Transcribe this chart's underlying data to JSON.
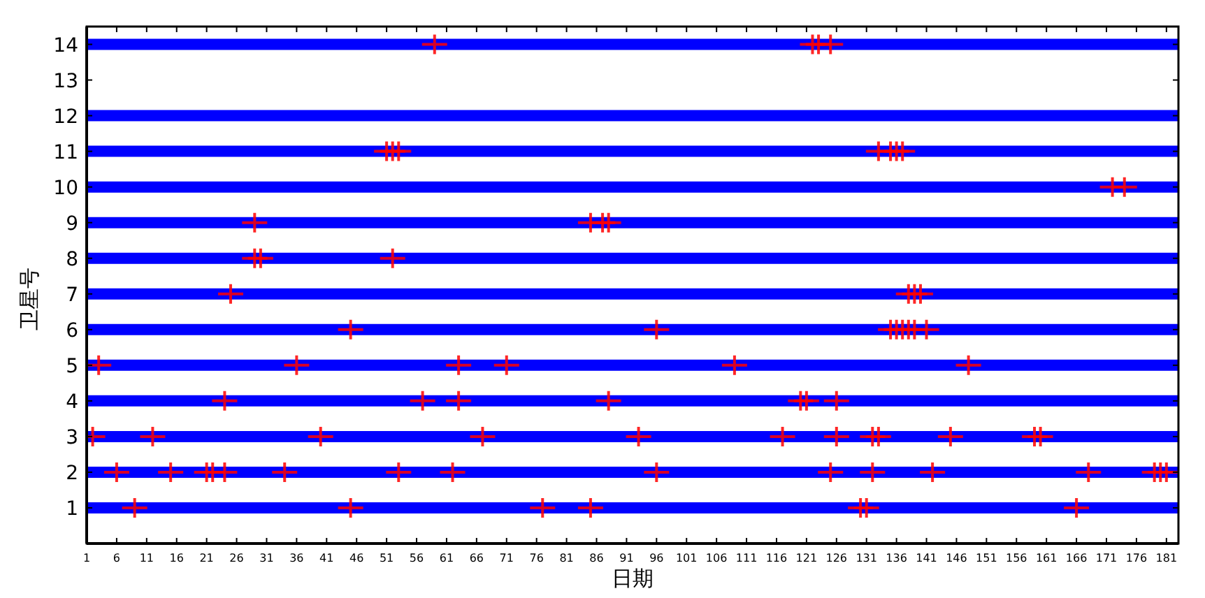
{
  "chart_data": {
    "type": "line",
    "xlabel": "日期",
    "ylabel": "卫星号",
    "xlim": [
      1,
      183
    ],
    "ylim": [
      0,
      14.5
    ],
    "xticks": [
      1,
      6,
      11,
      16,
      21,
      26,
      31,
      36,
      41,
      46,
      51,
      56,
      61,
      66,
      71,
      76,
      81,
      86,
      91,
      96,
      101,
      106,
      111,
      116,
      121,
      126,
      131,
      136,
      141,
      146,
      151,
      156,
      161,
      166,
      171,
      176,
      181
    ],
    "yticks": [
      1,
      2,
      3,
      4,
      5,
      6,
      7,
      8,
      9,
      10,
      11,
      12,
      13,
      14
    ],
    "series": [
      {
        "type": "line",
        "color": "#0000ff",
        "x": [
          1,
          183
        ],
        "values": [
          1,
          1
        ]
      },
      {
        "type": "line",
        "color": "#0000ff",
        "x": [
          1,
          183
        ],
        "values": [
          2,
          2
        ]
      },
      {
        "type": "line",
        "color": "#0000ff",
        "x": [
          1,
          183
        ],
        "values": [
          3,
          3
        ]
      },
      {
        "type": "line",
        "color": "#0000ff",
        "x": [
          1,
          183
        ],
        "values": [
          4,
          4
        ]
      },
      {
        "type": "line",
        "color": "#0000ff",
        "x": [
          1,
          183
        ],
        "values": [
          5,
          5
        ]
      },
      {
        "type": "line",
        "color": "#0000ff",
        "x": [
          1,
          183
        ],
        "values": [
          6,
          6
        ]
      },
      {
        "type": "line",
        "color": "#0000ff",
        "x": [
          1,
          183
        ],
        "values": [
          7,
          7
        ]
      },
      {
        "type": "line",
        "color": "#0000ff",
        "x": [
          1,
          183
        ],
        "values": [
          8,
          8
        ]
      },
      {
        "type": "line",
        "color": "#0000ff",
        "x": [
          1,
          183
        ],
        "values": [
          9,
          9
        ]
      },
      {
        "type": "line",
        "color": "#0000ff",
        "x": [
          1,
          183
        ],
        "values": [
          10,
          10
        ]
      },
      {
        "type": "line",
        "color": "#0000ff",
        "x": [
          1,
          183
        ],
        "values": [
          11,
          11
        ]
      },
      {
        "type": "line",
        "color": "#0000ff",
        "x": [
          1,
          183
        ],
        "values": [
          12,
          12
        ]
      },
      {
        "type": "line",
        "color": "#0000ff",
        "x": [
          1,
          183
        ],
        "values": [
          14,
          14
        ]
      },
      {
        "type": "scatter",
        "color": "#ff0000",
        "marker": "cross",
        "x": [
          9,
          45,
          77,
          85,
          130,
          131,
          166,
          6,
          15,
          21,
          22,
          24,
          34,
          53,
          62,
          96,
          125,
          132,
          142,
          168,
          179,
          180,
          181,
          2,
          12,
          40,
          67,
          93,
          117,
          126,
          132,
          133,
          145,
          159,
          160,
          24,
          57,
          63,
          88,
          120,
          121,
          126,
          3,
          36,
          63,
          71,
          109,
          148,
          45,
          96,
          135,
          136,
          137,
          138,
          139,
          141,
          25,
          138,
          139,
          140,
          29,
          30,
          52,
          29,
          85,
          87,
          88,
          172,
          174,
          51,
          52,
          53,
          133,
          135,
          136,
          137,
          59,
          122,
          123,
          125
        ],
        "values": [
          1,
          1,
          1,
          1,
          1,
          1,
          1,
          2,
          2,
          2,
          2,
          2,
          2,
          2,
          2,
          2,
          2,
          2,
          2,
          2,
          2,
          2,
          2,
          3,
          3,
          3,
          3,
          3,
          3,
          3,
          3,
          3,
          3,
          3,
          3,
          4,
          4,
          4,
          4,
          4,
          4,
          4,
          5,
          5,
          5,
          5,
          5,
          5,
          6,
          6,
          6,
          6,
          6,
          6,
          6,
          6,
          7,
          7,
          7,
          7,
          8,
          8,
          8,
          9,
          9,
          9,
          9,
          10,
          10,
          11,
          11,
          11,
          11,
          11,
          11,
          11,
          14,
          14,
          14,
          14
        ]
      }
    ]
  }
}
